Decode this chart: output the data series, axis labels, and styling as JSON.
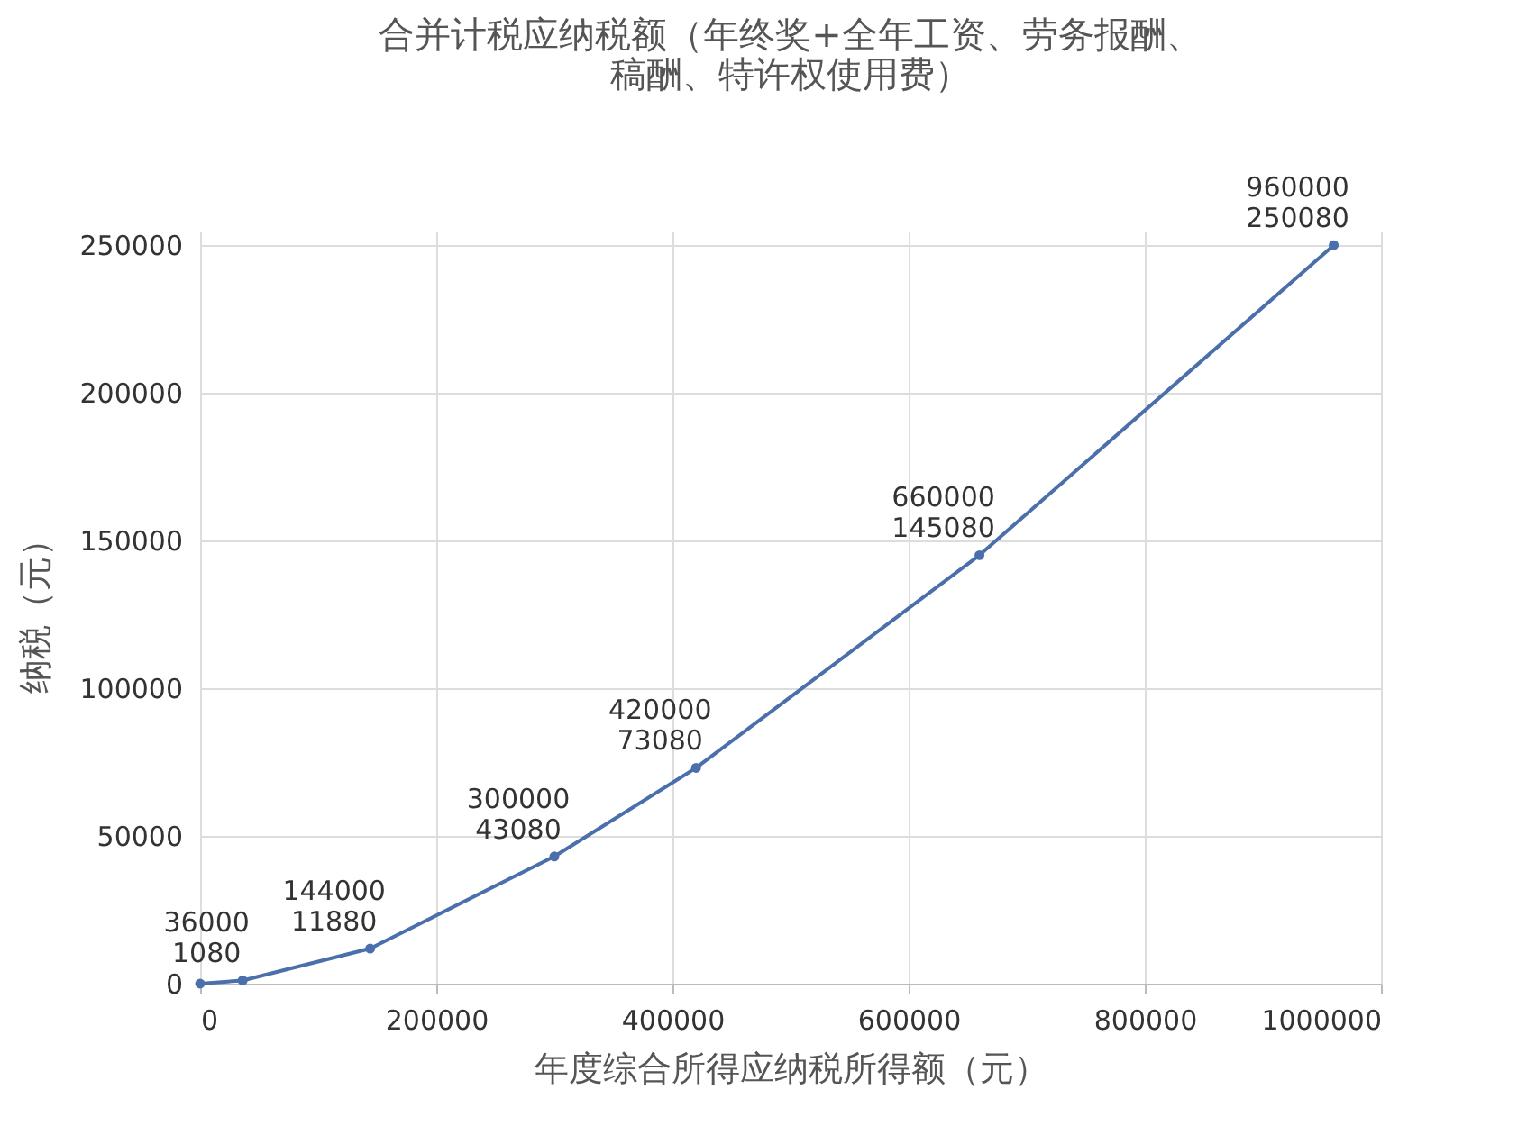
{
  "chart_data": {
    "type": "line",
    "title": "合并计税应纳税额（年终奖+全年工资、劳务报酬、稿酬、特许权使用费）",
    "xlabel": "年度综合所得应纳税所得额（元）",
    "ylabel": "纳税（元）",
    "x": [
      0,
      36000,
      144000,
      300000,
      420000,
      660000,
      960000
    ],
    "series": [
      {
        "color": "#4a6fab",
        "values": [
          0,
          1080,
          11880,
          43080,
          73080,
          145080,
          250080
        ],
        "value_labels": [
          null,
          "36000\n1080",
          "144000\n11880",
          "300000\n43080",
          "420000\n73080",
          "660000\n145080",
          "960000\n250080"
        ]
      }
    ],
    "xlim": [
      0,
      1000000
    ],
    "xticks": [
      0,
      200000,
      400000,
      600000,
      800000,
      1000000
    ],
    "ylim": [
      0,
      255000
    ],
    "yticks": [
      0,
      50000,
      100000,
      150000,
      200000,
      250000
    ],
    "grid": true,
    "marker": "circle",
    "line_style": "solid"
  }
}
